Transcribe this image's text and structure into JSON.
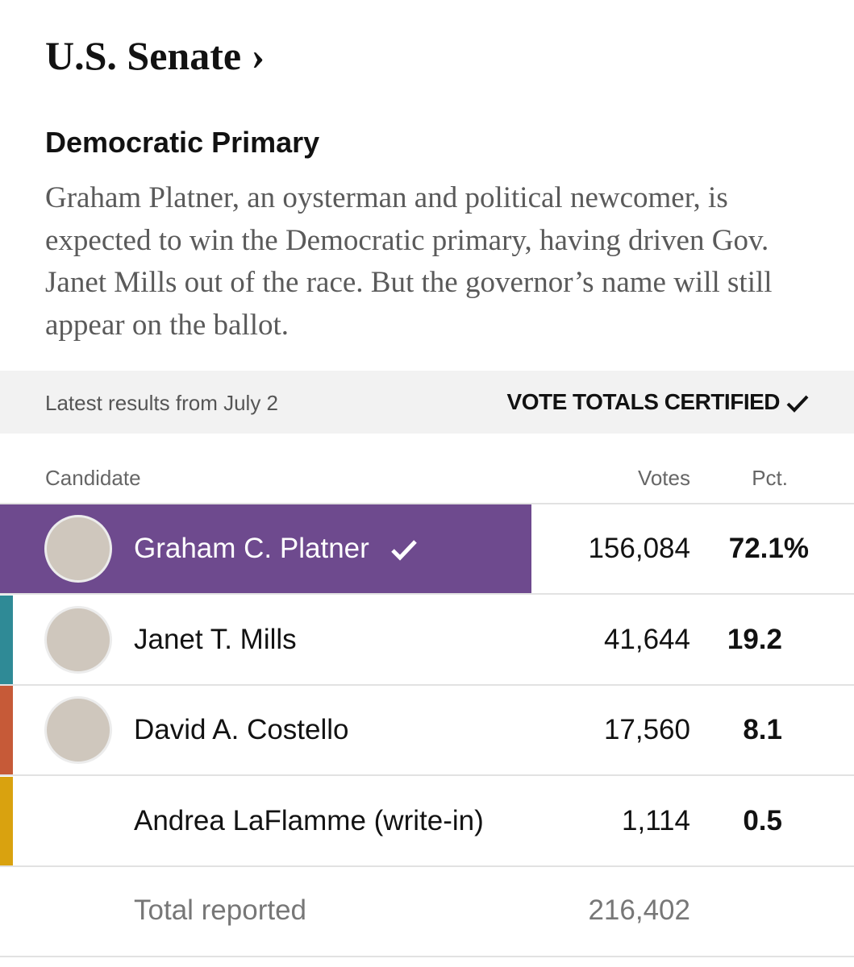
{
  "header": {
    "title": "U.S. Senate ›",
    "subtitle": "Democratic Primary",
    "description": "Graham Platner, an oysterman and political newcomer, is expected to win the Democratic primary, having driven Gov. Janet Mills out of the race. But the governor’s name will still appear on the ballot."
  },
  "status": {
    "latest": "Latest results from July 2",
    "certified": "VOTE TOTALS CERTIFIED"
  },
  "table": {
    "columns": [
      "Candidate",
      "Votes",
      "Pct."
    ],
    "rows": [
      {
        "name": "Graham C. Platner",
        "votes": "156,084",
        "pct": "72.1%",
        "color": "#6e4a8e",
        "winner": true,
        "photo": true
      },
      {
        "name": "Janet T. Mills",
        "votes": "41,644",
        "pct": "19.2",
        "color": "#2f8a96",
        "winner": false,
        "photo": true
      },
      {
        "name": "David A. Costello",
        "votes": "17,560",
        "pct": "8.1",
        "color": "#c65a38",
        "winner": false,
        "photo": true
      },
      {
        "name": "Andrea LaFlamme (write-in)",
        "votes": "1,114",
        "pct": "0.5",
        "color": "#d9a20f",
        "winner": false,
        "photo": false
      }
    ],
    "total": {
      "label": "Total reported",
      "votes": "216,402"
    }
  }
}
